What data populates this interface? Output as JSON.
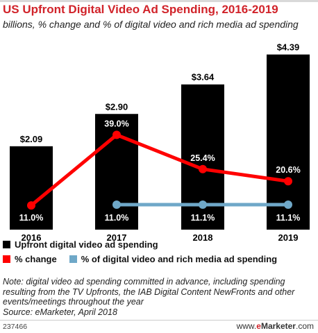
{
  "header": {
    "title": "US Upfront Digital Video Ad Spending, 2016-2019",
    "subtitle": "billions, % change and % of digital video and rich media ad spending"
  },
  "colors": {
    "title": "#d1232a",
    "bars": "#000000",
    "change_line": "#ff0000",
    "share_line": "#6fa8c8"
  },
  "chart_data": {
    "type": "bar",
    "categories": [
      "2016",
      "2017",
      "2018",
      "2019"
    ],
    "series": [
      {
        "name": "Upfront digital video ad spending",
        "type": "bar",
        "values": [
          2.09,
          2.9,
          3.64,
          4.39
        ],
        "labels": [
          "$2.09",
          "$2.90",
          "$3.64",
          "$4.39"
        ]
      },
      {
        "name": "% change",
        "type": "line",
        "values": [
          11.0,
          39.0,
          25.4,
          20.6
        ],
        "labels": [
          "11.0%",
          "39.0%",
          "25.4%",
          "20.6%"
        ]
      },
      {
        "name": "% of digital video and rich media ad spending",
        "type": "line",
        "values": [
          null,
          11.0,
          11.1,
          11.1
        ],
        "labels": [
          "",
          "11.0%",
          "11.1%",
          "11.1%"
        ]
      }
    ],
    "title": "US Upfront Digital Video Ad Spending, 2016-2019",
    "xlabel": "",
    "ylabel": "",
    "grid": false,
    "legend_placement": "bottom"
  },
  "legend": {
    "bars": "Upfront digital video ad spending",
    "change": "% change",
    "share": "% of digital video and rich media ad spending"
  },
  "note": "Note: digital video ad spending committed in advance, including spending resulting from the TV Upfronts, the IAB Digital Content NewFronts and other events/meetings throughout the year",
  "source": "Source: eMarketer, April 2018",
  "footer": {
    "chart_id": "237466",
    "brand_prefix": "www.",
    "brand_e": "e",
    "brand_name": "Marketer",
    "brand_suffix": ".com"
  }
}
